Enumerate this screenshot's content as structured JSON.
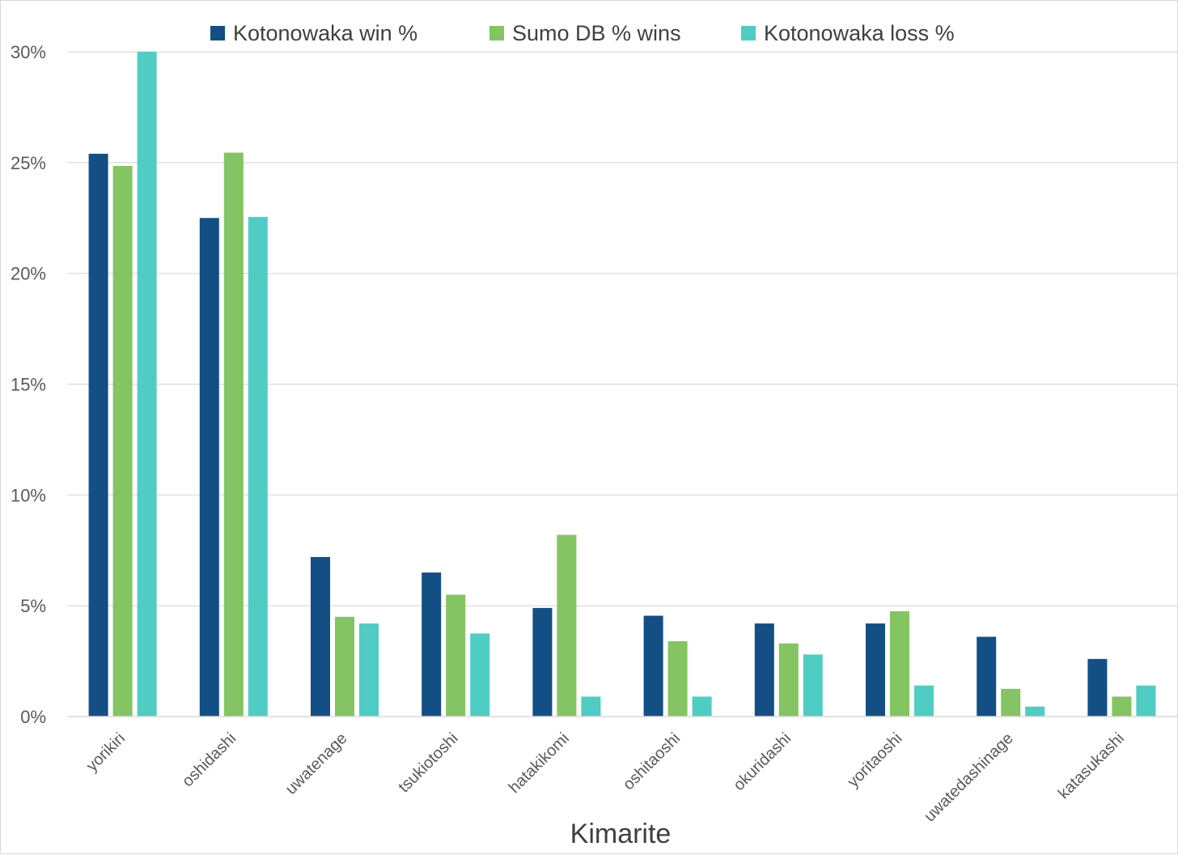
{
  "chart_data": {
    "type": "bar",
    "title": "",
    "xlabel": "Kimarite",
    "ylabel": "",
    "ylim": [
      0,
      30
    ],
    "yticks": [
      "0%",
      "5%",
      "10%",
      "15%",
      "20%",
      "25%",
      "30%"
    ],
    "grid": "horizontal",
    "legend_position": "top",
    "categories": [
      "yorikiri",
      "oshidashi",
      "uwatenage",
      "tsukiotoshi",
      "hatakikomi",
      "oshitaoshi",
      "okuridashi",
      "yoritaoshi",
      "uwatedashinage",
      "katasukashi"
    ],
    "series": [
      {
        "name": "Kotonowaka win %",
        "color": "#134f85",
        "values": [
          25.4,
          22.5,
          7.2,
          6.5,
          4.9,
          4.55,
          4.2,
          4.2,
          3.6,
          2.6
        ]
      },
      {
        "name": "Sumo DB % wins",
        "color": "#84c462",
        "values": [
          24.85,
          25.45,
          4.5,
          5.5,
          8.2,
          3.4,
          3.3,
          4.75,
          1.25,
          0.9
        ]
      },
      {
        "name": "Kotonowaka loss %",
        "color": "#4fcdc4",
        "values": [
          30.0,
          22.55,
          4.2,
          3.75,
          0.9,
          0.9,
          2.8,
          1.4,
          0.45,
          1.4
        ]
      }
    ]
  }
}
